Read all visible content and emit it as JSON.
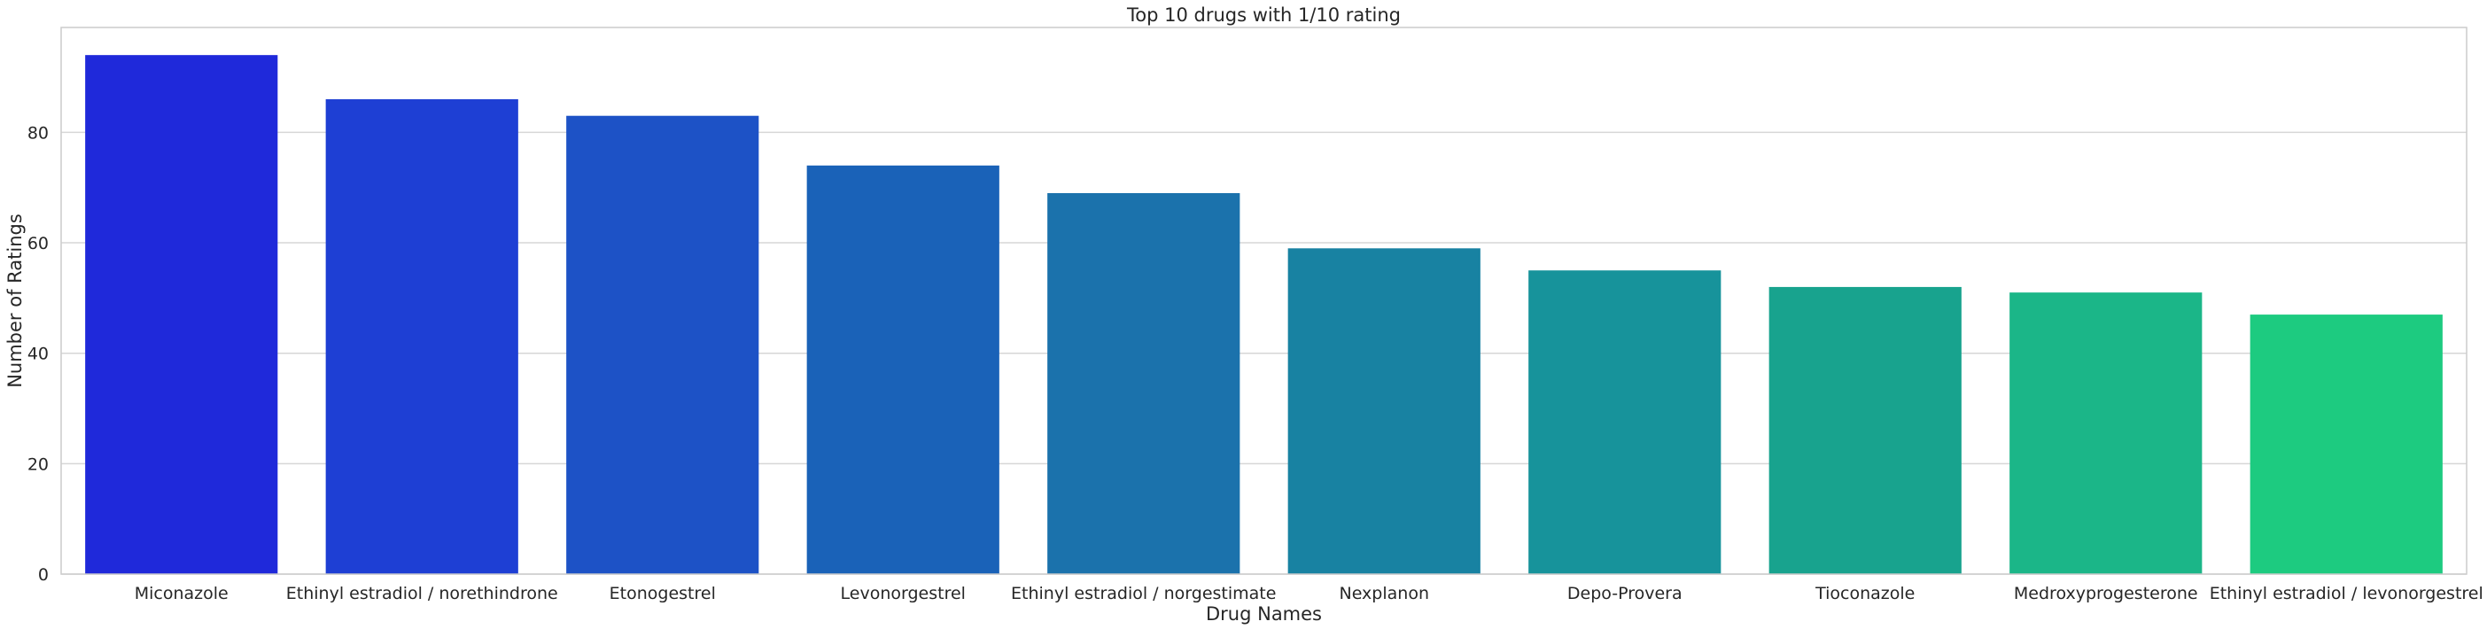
{
  "chart_data": {
    "type": "bar",
    "title": "Top 10 drugs with 1/10 rating",
    "xlabel": "Drug Names",
    "ylabel": "Number of Ratings",
    "categories": [
      "Miconazole",
      "Ethinyl estradiol / norethindrone",
      "Etonogestrel",
      "Levonorgestrel",
      "Ethinyl estradiol / norgestimate",
      "Nexplanon",
      "Depo-Provera",
      "Tioconazole",
      "Medroxyprogesterone",
      "Ethinyl estradiol / levonorgestrel"
    ],
    "values": [
      94,
      86,
      83,
      74,
      69,
      59,
      55,
      52,
      51,
      47
    ],
    "colors": [
      "#1f29da",
      "#1e3fd4",
      "#1d52c6",
      "#1a62b8",
      "#1b72ac",
      "#1882a2",
      "#17939b",
      "#18a38e",
      "#1bb688",
      "#1dcb80"
    ],
    "ylim": [
      0,
      99
    ],
    "yticks": [
      0,
      20,
      40,
      60,
      80
    ],
    "grid": "horizontal",
    "legend": "none"
  }
}
